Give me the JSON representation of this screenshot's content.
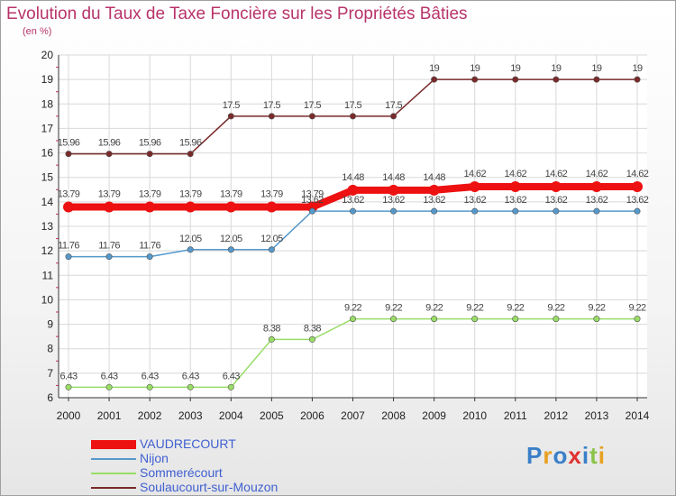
{
  "chart_data": {
    "type": "line",
    "title": "Evolution du Taux de Taxe Foncière sur les Propriétés Bâties",
    "ylabel": "(en %)",
    "xlabel": "",
    "x": [
      "2000",
      "2001",
      "2002",
      "2003",
      "2004",
      "2005",
      "2006",
      "2007",
      "2008",
      "2009",
      "2010",
      "2011",
      "2012",
      "2013",
      "2014"
    ],
    "ylim": [
      6,
      20
    ],
    "yticks": [
      "6",
      "7",
      "8",
      "9",
      "10",
      "11",
      "12",
      "13",
      "14",
      "15",
      "16",
      "17",
      "18",
      "19",
      "20"
    ],
    "grid": true,
    "legend_position": "bottom-left",
    "series": [
      {
        "name": "Soulaucourt-sur-Mouzon",
        "color": "#7a2a2a",
        "width": 1.5,
        "values": [
          15.96,
          15.96,
          15.96,
          15.96,
          17.5,
          17.5,
          17.5,
          17.5,
          17.5,
          19,
          19,
          19,
          19,
          19,
          19
        ],
        "labels": [
          "15.96",
          "15.96",
          "15.96",
          "15.96",
          "17.5",
          "17.5",
          "17.5",
          "17.5",
          "17.5",
          "19",
          "19",
          "19",
          "19",
          "19",
          "19"
        ]
      },
      {
        "name": "VAUDRECOURT",
        "color": "#ee1111",
        "width": 8,
        "values": [
          13.79,
          13.79,
          13.79,
          13.79,
          13.79,
          13.79,
          13.79,
          14.48,
          14.48,
          14.48,
          14.62,
          14.62,
          14.62,
          14.62,
          14.62
        ],
        "labels": [
          "13.79",
          "13.79",
          "13.79",
          "13.79",
          "13.79",
          "13.79",
          "13.79",
          "14.48",
          "14.48",
          "14.48",
          "14.62",
          "14.62",
          "14.62",
          "14.62",
          "14.62"
        ]
      },
      {
        "name": "Nijon",
        "color": "#5599cc",
        "width": 1.5,
        "values": [
          11.76,
          11.76,
          11.76,
          12.05,
          12.05,
          12.05,
          13.62,
          13.62,
          13.62,
          13.62,
          13.62,
          13.62,
          13.62,
          13.62,
          13.62
        ],
        "labels": [
          "11.76",
          "11.76",
          "11.76",
          "12.05",
          "12.05",
          "12.05",
          "13.62",
          "13.62",
          "13.62",
          "13.62",
          "13.62",
          "13.62",
          "13.62",
          "13.62",
          "13.62"
        ]
      },
      {
        "name": "Sommerécourt",
        "color": "#99dd66",
        "width": 1.5,
        "values": [
          6.43,
          6.43,
          6.43,
          6.43,
          6.43,
          8.38,
          8.38,
          9.22,
          9.22,
          9.22,
          9.22,
          9.22,
          9.22,
          9.22,
          9.22
        ],
        "labels": [
          "6.43",
          "6.43",
          "6.43",
          "6.43",
          "6.43",
          "8.38",
          "8.38",
          "9.22",
          "9.22",
          "9.22",
          "9.22",
          "9.22",
          "9.22",
          "9.22",
          "9.22"
        ]
      }
    ],
    "legend": [
      {
        "name": "VAUDRECOURT",
        "color": "#ee1111"
      },
      {
        "name": "Nijon",
        "color": "#5599cc"
      },
      {
        "name": "Sommerécourt",
        "color": "#99dd66"
      },
      {
        "name": "Soulaucourt-sur-Mouzon",
        "color": "#7a2a2a"
      }
    ]
  },
  "logo": {
    "text": "Proxiti",
    "letters": [
      {
        "ch": "P",
        "color": "#3a7fc8"
      },
      {
        "ch": "r",
        "color": "#e8a020"
      },
      {
        "ch": "o",
        "color": "#3a7fc8"
      },
      {
        "ch": "x",
        "color": "#e03030"
      },
      {
        "ch": "i",
        "color": "#3a7fc8"
      },
      {
        "ch": "t",
        "color": "#8bc34a"
      },
      {
        "ch": "i",
        "color": "#e8a020"
      }
    ]
  }
}
